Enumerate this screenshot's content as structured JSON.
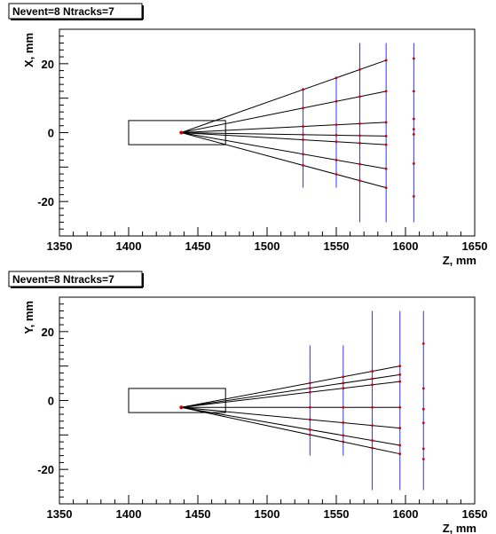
{
  "chart_data": [
    {
      "type": "scatter",
      "title": "Nevent=8 Ntracks=7",
      "xlabel": "Z, mm",
      "ylabel": "X, mm",
      "xlim": [
        1350,
        1650
      ],
      "ylim": [
        -30,
        30
      ],
      "x_ticks": [
        1350,
        1400,
        1450,
        1500,
        1550,
        1600,
        1650
      ],
      "y_ticks": [
        -20,
        0,
        20
      ],
      "vertex": {
        "z": 1438,
        "v": 0
      },
      "box": {
        "z1": 1400,
        "z2": 1470,
        "v1": -3.5,
        "v2": 3.5
      },
      "detector_planes": [
        {
          "z": 1526,
          "v1": -16,
          "v2": 13
        },
        {
          "z": 1550,
          "v1": -16,
          "v2": 16
        },
        {
          "z": 1567,
          "v1": -26,
          "v2": 26
        },
        {
          "z": 1586,
          "v1": -26,
          "v2": 26
        },
        {
          "z": 1606,
          "v1": -26,
          "v2": 26
        }
      ],
      "tracks": [
        {
          "z_end": 1586,
          "v_end": 21
        },
        {
          "z_end": 1586,
          "v_end": 12
        },
        {
          "z_end": 1586,
          "v_end": 3
        },
        {
          "z_end": 1586,
          "v_end": -1
        },
        {
          "z_end": 1586,
          "v_end": -3.5
        },
        {
          "z_end": 1586,
          "v_end": -10.5
        },
        {
          "z_end": 1586,
          "v_end": -16
        }
      ],
      "extra_hits": [
        {
          "z": 1606,
          "v": 21.5
        },
        {
          "z": 1606,
          "v": 12
        },
        {
          "z": 1606,
          "v": 4
        },
        {
          "z": 1606,
          "v": 1
        },
        {
          "z": 1606,
          "v": -0.5
        },
        {
          "z": 1606,
          "v": -9
        },
        {
          "z": 1606,
          "v": -18.5
        }
      ]
    },
    {
      "type": "scatter",
      "title": "Nevent=8 Ntracks=7",
      "xlabel": "Z, mm",
      "ylabel": "Y, mm",
      "xlim": [
        1350,
        1650
      ],
      "ylim": [
        -30,
        30
      ],
      "x_ticks": [
        1350,
        1400,
        1450,
        1500,
        1550,
        1600,
        1650
      ],
      "y_ticks": [
        -20,
        0,
        20
      ],
      "vertex": {
        "z": 1438,
        "v": -2
      },
      "box": {
        "z1": 1400,
        "z2": 1470,
        "v1": -3.5,
        "v2": 3.5
      },
      "detector_planes": [
        {
          "z": 1531,
          "v1": -16,
          "v2": 16
        },
        {
          "z": 1555,
          "v1": -16,
          "v2": 16
        },
        {
          "z": 1576,
          "v1": -26,
          "v2": 26
        },
        {
          "z": 1596,
          "v1": -26,
          "v2": 26
        },
        {
          "z": 1613,
          "v1": -26,
          "v2": 26
        }
      ],
      "tracks": [
        {
          "z_end": 1596,
          "v_end": 10
        },
        {
          "z_end": 1596,
          "v_end": 7.5
        },
        {
          "z_end": 1596,
          "v_end": 5.5
        },
        {
          "z_end": 1596,
          "v_end": -2
        },
        {
          "z_end": 1596,
          "v_end": -8
        },
        {
          "z_end": 1596,
          "v_end": -13
        },
        {
          "z_end": 1596,
          "v_end": -15.5
        }
      ],
      "extra_hits": [
        {
          "z": 1613,
          "v": 16.5
        },
        {
          "z": 1613,
          "v": 3.5
        },
        {
          "z": 1613,
          "v": -2.5
        },
        {
          "z": 1613,
          "v": -6.5
        },
        {
          "z": 1613,
          "v": -14
        },
        {
          "z": 1613,
          "v": -17
        }
      ]
    }
  ],
  "colors": {
    "track": "#000000",
    "hit": "#cc0000",
    "plane": "#3333ff",
    "frame": "#000000"
  }
}
